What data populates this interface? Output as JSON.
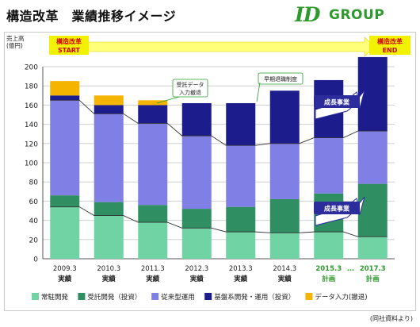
{
  "header": {
    "title": "構造改革　業績推移イメージ",
    "logo_mark": "ID",
    "logo_group": "GROUP"
  },
  "source_note": "(同社資料より)",
  "colors": {
    "jyouchu": "#6fd3a4",
    "jutaku": "#2f8f62",
    "juurai": "#7f7fe6",
    "kiban": "#1c1c8c",
    "data": "#f4b400",
    "start_end_box": "#f2f200",
    "banner_arrow": "#ffff7a",
    "growth_label": "#2c2c9c"
  },
  "chart_data": {
    "type": "bar",
    "stacked": true,
    "ytitle": [
      "売上高",
      "(億円)"
    ],
    "ylim": [
      0,
      200
    ],
    "yticks": [
      0,
      20,
      40,
      60,
      80,
      100,
      120,
      140,
      160,
      180,
      200
    ],
    "categories": [
      "2009.3",
      "2010.3",
      "2011.3",
      "2012.3",
      "2013.3",
      "2014.3",
      "2015.3",
      "2017.3"
    ],
    "category_sub": [
      "実績",
      "実績",
      "実績",
      "実績",
      "実績",
      "実績",
      "計画",
      "計画"
    ],
    "planned": [
      false,
      false,
      false,
      false,
      false,
      false,
      true,
      true
    ],
    "gap_label": "…",
    "grid": true,
    "legend_position": "bottom",
    "series": [
      {
        "name": "常駐開発",
        "key": "jyouchu",
        "values": [
          54,
          45,
          38,
          32,
          28,
          27,
          28,
          23
        ]
      },
      {
        "name": "受託開発（投資）",
        "key": "jutaku",
        "values": [
          12,
          14,
          18,
          20,
          26,
          35,
          40,
          55
        ]
      },
      {
        "name": "従来型運用",
        "key": "juurai",
        "values": [
          99,
          92,
          85,
          76,
          64,
          58,
          58,
          55
        ]
      },
      {
        "name": "基盤系開発・運用（投資）",
        "key": "kiban",
        "values": [
          5,
          9,
          19,
          34,
          44,
          55,
          60,
          77
        ]
      },
      {
        "name": "データ入力(撤退)",
        "key": "data",
        "values": [
          15,
          10,
          5,
          0,
          0,
          0,
          0,
          0
        ]
      }
    ],
    "annotations": {
      "start_box": [
        "構造改革",
        "START"
      ],
      "end_box": [
        "構造改革",
        "END"
      ],
      "callout_data": [
        "受託データ",
        "入力撤退"
      ],
      "callout_early": "早期退職制度",
      "growth_upper": "成長事業",
      "growth_lower": "成長事業"
    }
  }
}
